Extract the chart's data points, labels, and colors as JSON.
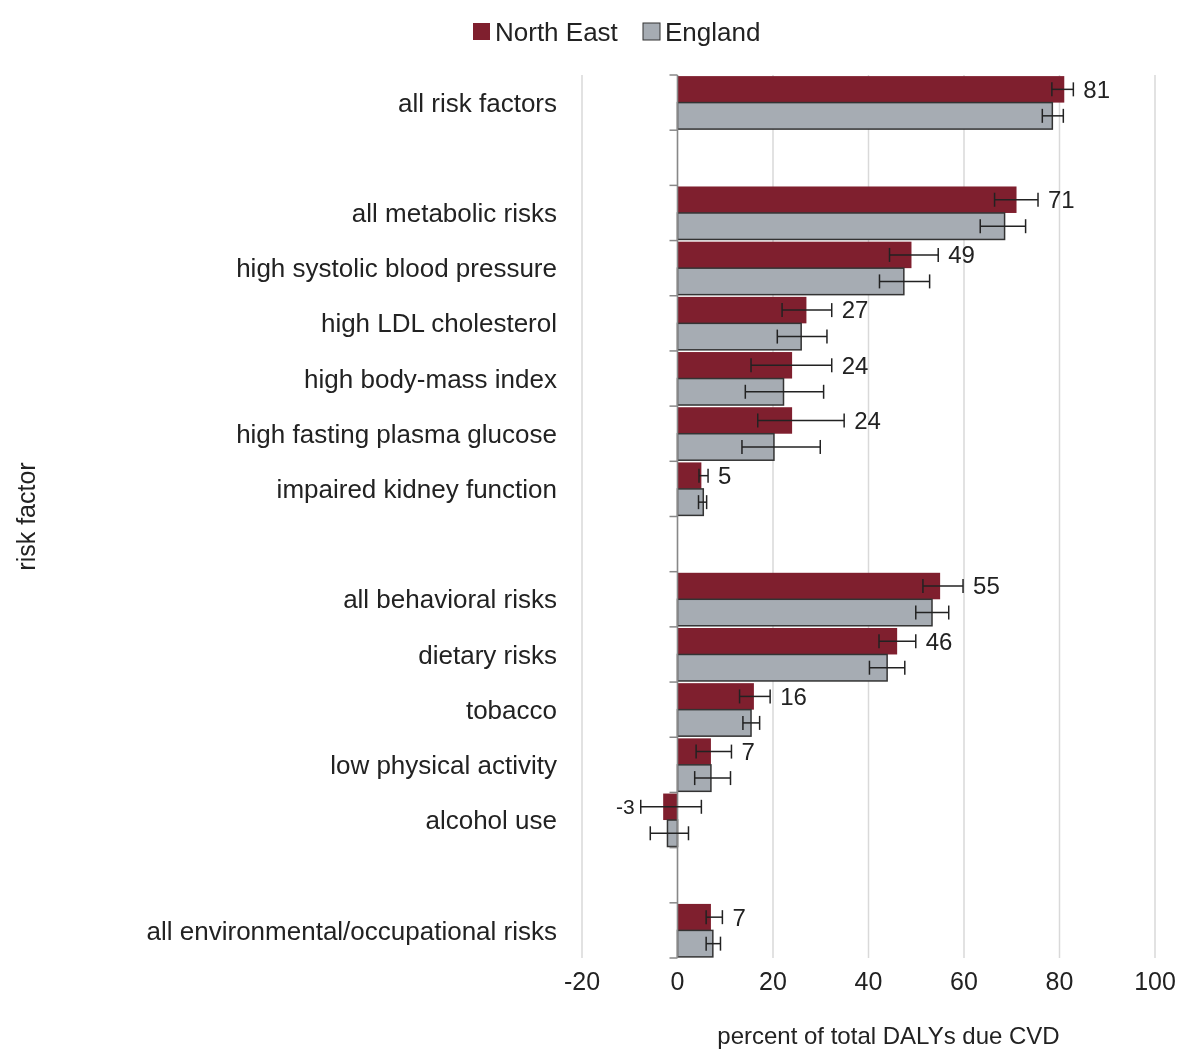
{
  "chart_data": {
    "type": "bar",
    "orientation": "horizontal",
    "xlabel": "percent of total DALYs due CVD",
    "ylabel": "risk factor",
    "categories": [
      "all risk factors",
      null,
      "all metabolic risks",
      "high systolic blood pressure",
      "high LDL cholesterol",
      "high body-mass index",
      "high fasting plasma glucose",
      "impaired kidney function",
      null,
      "all behavioral risks",
      "dietary risks",
      "tobacco",
      "low physical activity",
      "alcohol use",
      null,
      "all environmental/occupational risks"
    ],
    "series": [
      {
        "name": "North East",
        "color": "#7f1f2e",
        "values": [
          81,
          null,
          71,
          49,
          27,
          24,
          24,
          5,
          null,
          55,
          46,
          16,
          7,
          -3,
          null,
          7
        ],
        "errors": [
          [
            78.4,
            82.9
          ],
          null,
          [
            66.4,
            75.5
          ],
          [
            44.4,
            54.6
          ],
          [
            21.9,
            32.3
          ],
          [
            15.4,
            32.3
          ],
          [
            16.8,
            34.9
          ],
          [
            4.5,
            6.4
          ],
          null,
          [
            51.4,
            59.8
          ],
          [
            42.2,
            49.9
          ],
          [
            13.0,
            19.4
          ],
          [
            3.9,
            11.3
          ],
          [
            -7.7,
            5.0
          ],
          null,
          [
            6.0,
            9.4
          ]
        ],
        "value_labels": [
          "81",
          null,
          "71",
          "49",
          "27",
          "24",
          "24",
          "5",
          null,
          "55",
          "46",
          "16",
          "7",
          "-3",
          null,
          "7"
        ]
      },
      {
        "name": "England",
        "color": "#a6acb3",
        "values": [
          78.5,
          null,
          68.5,
          47.4,
          25.9,
          22.2,
          20.2,
          5.4,
          null,
          53.3,
          43.9,
          15.4,
          7.0,
          -2.1,
          null,
          7.4
        ],
        "errors": [
          [
            76.4,
            80.8
          ],
          null,
          [
            63.4,
            72.9
          ],
          [
            42.3,
            52.8
          ],
          [
            20.9,
            31.3
          ],
          [
            14.2,
            30.6
          ],
          [
            13.5,
            29.9
          ],
          [
            4.4,
            6.1
          ],
          null,
          [
            49.9,
            56.8
          ],
          [
            40.2,
            47.6
          ],
          [
            13.7,
            17.2
          ],
          [
            3.6,
            11.1
          ],
          [
            -5.7,
            2.3
          ],
          null,
          [
            6.0,
            9.0
          ]
        ]
      }
    ],
    "xlim": [
      -20,
      100
    ],
    "xticks": [
      -20,
      0,
      20,
      40,
      60,
      80,
      100
    ],
    "grid": "x",
    "legend": "top"
  }
}
